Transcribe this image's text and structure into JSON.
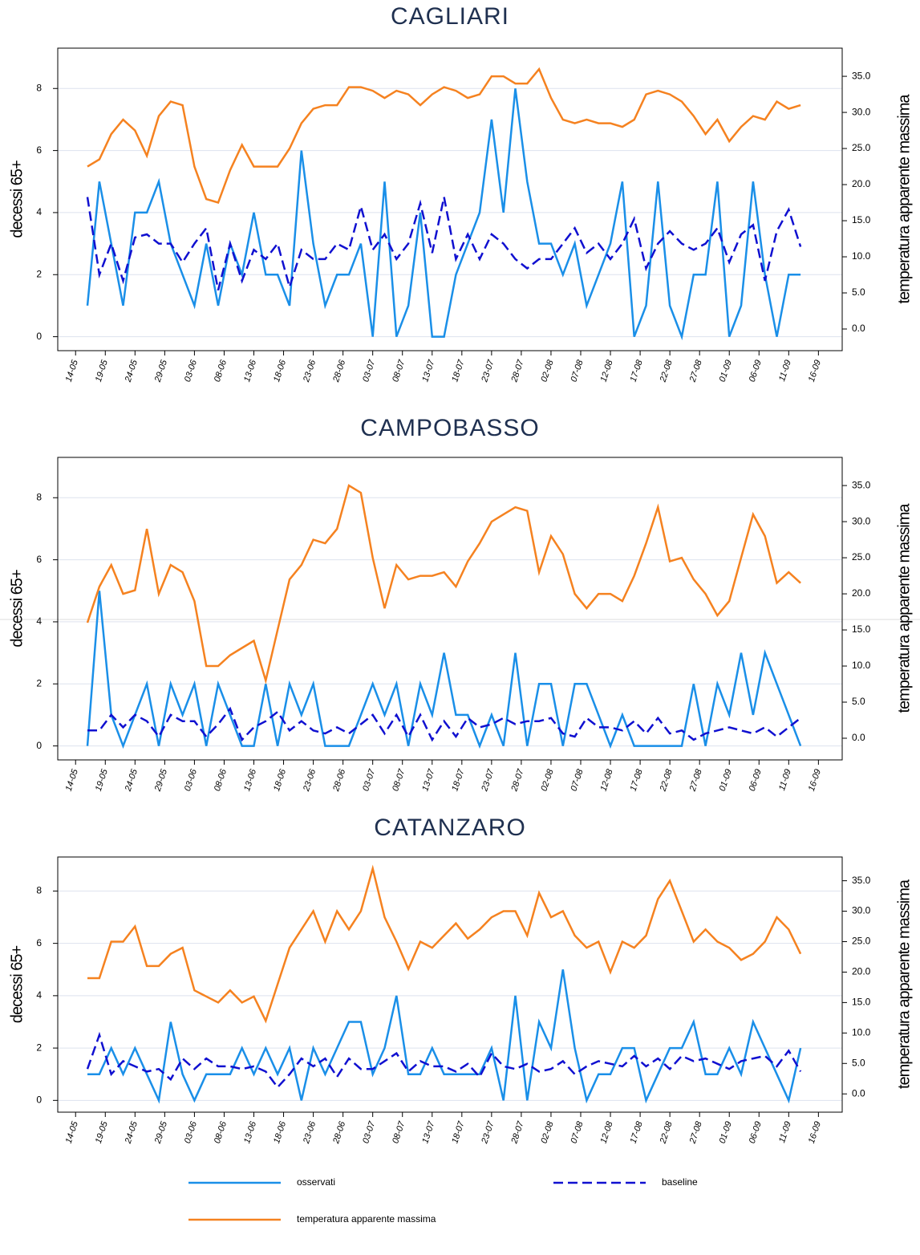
{
  "chart_data": [
    {
      "type": "line",
      "title": "CAGLIARI",
      "ylabel": "decessi 65+",
      "y2label": "temperatura apparente massima",
      "x": [
        "16-05",
        "18-05",
        "20-05",
        "22-05",
        "24-05",
        "26-05",
        "28-05",
        "30-05",
        "01-06",
        "03-06",
        "05-06",
        "07-06",
        "09-06",
        "11-06",
        "13-06",
        "15-06",
        "17-06",
        "19-06",
        "21-06",
        "23-06",
        "25-06",
        "27-06",
        "29-06",
        "01-07",
        "03-07",
        "05-07",
        "07-07",
        "09-07",
        "11-07",
        "13-07",
        "15-07",
        "17-07",
        "19-07",
        "21-07",
        "23-07",
        "25-07",
        "27-07",
        "29-07",
        "31-07",
        "02-08",
        "04-08",
        "06-08",
        "08-08",
        "10-08",
        "12-08",
        "14-08",
        "16-08",
        "18-08",
        "20-08",
        "22-08",
        "24-08",
        "26-08",
        "28-08",
        "30-08",
        "01-09",
        "03-09",
        "05-09",
        "07-09",
        "09-09",
        "11-09",
        "13-09"
      ],
      "xlim": [
        "11-05",
        "20-09"
      ],
      "xticks": [
        "14-05",
        "19-05",
        "24-05",
        "29-05",
        "03-06",
        "08-06",
        "13-06",
        "18-06",
        "23-06",
        "28-06",
        "03-07",
        "08-07",
        "13-07",
        "18-07",
        "23-07",
        "28-07",
        "02-08",
        "07-08",
        "12-08",
        "17-08",
        "22-08",
        "27-08",
        "01-09",
        "06-09",
        "11-09",
        "16-09"
      ],
      "ylim": [
        -0.45,
        9.3
      ],
      "yticks": [
        0,
        2,
        4,
        6,
        8
      ],
      "y2lim": [
        -3,
        38.9
      ],
      "y2ticks": [
        {
          "value": 0,
          "label": "0.0"
        },
        {
          "value": 5,
          "label": "5.0"
        },
        {
          "value": 10,
          "label": "10.0"
        },
        {
          "value": 15,
          "label": "15.0"
        },
        {
          "value": 20,
          "label": "20.0"
        },
        {
          "value": 25,
          "label": "25.0"
        },
        {
          "value": 30,
          "label": "30.0"
        },
        {
          "value": 35,
          "label": "35.0"
        }
      ],
      "grid": true,
      "series": [
        {
          "color": "#1a8fe8",
          "dash": "solid",
          "values": [
            1,
            5,
            3,
            1,
            4,
            4,
            5,
            3,
            2,
            1,
            3,
            1,
            3,
            2,
            4,
            2,
            2,
            1,
            6,
            3,
            1,
            2,
            2,
            3,
            0,
            5,
            0,
            1,
            4,
            0,
            0,
            2,
            3,
            4,
            7,
            4,
            8,
            5,
            3,
            3,
            2,
            3,
            1,
            2,
            3,
            5,
            0,
            1,
            5,
            1,
            0,
            2,
            2,
            5,
            0,
            1,
            5,
            2,
            0,
            2,
            2
          ]
        },
        {
          "color": "#1010d0",
          "dash": "dashed",
          "values": [
            4.5,
            2,
            3,
            1.8,
            3.2,
            3.3,
            3,
            3,
            2.4,
            3,
            3.5,
            1.5,
            3,
            1.8,
            2.8,
            2.5,
            3,
            1.6,
            2.8,
            2.5,
            2.5,
            3,
            2.8,
            4.2,
            2.8,
            3.3,
            2.5,
            3,
            4.3,
            2.7,
            4.5,
            2.5,
            3.3,
            2.5,
            3.3,
            3,
            2.5,
            2.2,
            2.5,
            2.5,
            3,
            3.5,
            2.7,
            3,
            2.5,
            3,
            3.8,
            2.2,
            3,
            3.4,
            3,
            2.8,
            3,
            3.5,
            2.4,
            3.3,
            3.6,
            1.8,
            3.4,
            4.1,
            2.9
          ]
        },
        {
          "color": "#f58220",
          "dash": "solid",
          "axis": "y2",
          "values": [
            22.5,
            23.5,
            27,
            29,
            27.5,
            24,
            29.5,
            31.5,
            31,
            22.5,
            18,
            17.5,
            22,
            25.5,
            22.5,
            22.5,
            22.5,
            25,
            28.5,
            30.5,
            31,
            31,
            33.5,
            33.5,
            33,
            32,
            33,
            32.5,
            31,
            32.5,
            33.5,
            33,
            32,
            32.5,
            35,
            35,
            34,
            34,
            36,
            32,
            29,
            28.5,
            29,
            28.5,
            28.5,
            28,
            29,
            32.5,
            33,
            32.5,
            31.5,
            29.5,
            27,
            29,
            26,
            28,
            29.5,
            29,
            31.5,
            30.5,
            31
          ]
        }
      ]
    },
    {
      "type": "line",
      "title": "CAMPOBASSO",
      "ylabel": "decessi 65+",
      "y2label": "temperatura apparente massima",
      "x": [
        "16-05",
        "18-05",
        "20-05",
        "22-05",
        "24-05",
        "26-05",
        "28-05",
        "30-05",
        "01-06",
        "03-06",
        "05-06",
        "07-06",
        "09-06",
        "11-06",
        "13-06",
        "15-06",
        "17-06",
        "19-06",
        "21-06",
        "23-06",
        "25-06",
        "27-06",
        "29-06",
        "01-07",
        "03-07",
        "05-07",
        "07-07",
        "09-07",
        "11-07",
        "13-07",
        "15-07",
        "17-07",
        "19-07",
        "21-07",
        "23-07",
        "25-07",
        "27-07",
        "29-07",
        "31-07",
        "02-08",
        "04-08",
        "06-08",
        "08-08",
        "10-08",
        "12-08",
        "14-08",
        "16-08",
        "18-08",
        "20-08",
        "22-08",
        "24-08",
        "26-08",
        "28-08",
        "30-08",
        "01-09",
        "03-09",
        "05-09",
        "07-09",
        "09-09",
        "11-09",
        "13-09"
      ],
      "xlim": [
        "11-05",
        "20-09"
      ],
      "xticks": [
        "14-05",
        "19-05",
        "24-05",
        "29-05",
        "03-06",
        "08-06",
        "13-06",
        "18-06",
        "23-06",
        "28-06",
        "03-07",
        "08-07",
        "13-07",
        "18-07",
        "23-07",
        "28-07",
        "02-08",
        "07-08",
        "12-08",
        "17-08",
        "22-08",
        "27-08",
        "01-09",
        "06-09",
        "11-09",
        "16-09"
      ],
      "ylim": [
        -0.45,
        9.3
      ],
      "yticks": [
        0,
        2,
        4,
        6,
        8
      ],
      "y2lim": [
        -3,
        38.9
      ],
      "y2ticks": [
        {
          "value": 0,
          "label": "0.0"
        },
        {
          "value": 5,
          "label": "5.0"
        },
        {
          "value": 10,
          "label": "10.0"
        },
        {
          "value": 15,
          "label": "15.0"
        },
        {
          "value": 20,
          "label": "20.0"
        },
        {
          "value": 25,
          "label": "25.0"
        },
        {
          "value": 30,
          "label": "30.0"
        },
        {
          "value": 35,
          "label": "35.0"
        }
      ],
      "grid": true,
      "series": [
        {
          "color": "#1a8fe8",
          "dash": "solid",
          "values": [
            0,
            5,
            1,
            0,
            1,
            2,
            0,
            2,
            1,
            2,
            0,
            2,
            1,
            0,
            0,
            2,
            0,
            2,
            1,
            2,
            0,
            0,
            0,
            1,
            2,
            1,
            2,
            0,
            2,
            1,
            3,
            1,
            1,
            0,
            1,
            0,
            3,
            0,
            2,
            2,
            0,
            2,
            2,
            1,
            0,
            1,
            0,
            0,
            0,
            0,
            0,
            2,
            0,
            2,
            1,
            3,
            1,
            3,
            2,
            1,
            0
          ]
        },
        {
          "color": "#1010d0",
          "dash": "dashed",
          "values": [
            0.5,
            0.5,
            1,
            0.6,
            1,
            0.8,
            0.3,
            1,
            0.8,
            0.8,
            0.3,
            0.7,
            1.2,
            0.2,
            0.6,
            0.8,
            1.1,
            0.5,
            0.8,
            0.5,
            0.4,
            0.6,
            0.4,
            0.7,
            1,
            0.4,
            1,
            0.3,
            1,
            0.2,
            0.8,
            0.3,
            0.9,
            0.6,
            0.7,
            0.9,
            0.7,
            0.8,
            0.8,
            0.9,
            0.4,
            0.3,
            0.9,
            0.6,
            0.6,
            0.5,
            0.8,
            0.4,
            0.9,
            0.4,
            0.5,
            0.2,
            0.4,
            0.5,
            0.6,
            0.5,
            0.4,
            0.6,
            0.3,
            0.6,
            0.9
          ]
        },
        {
          "color": "#f58220",
          "dash": "solid",
          "axis": "y2",
          "values": [
            16,
            21,
            24,
            20,
            20.5,
            29,
            20,
            24,
            23,
            19,
            10,
            10,
            11.5,
            12.5,
            13.5,
            8,
            15,
            22,
            24,
            27.5,
            27,
            29,
            35,
            34,
            25,
            18,
            24,
            22,
            22.5,
            22.5,
            23,
            21,
            24.5,
            27,
            30,
            31,
            32,
            31.5,
            23,
            28,
            25.5,
            20,
            18,
            20,
            20,
            19,
            22.5,
            27,
            32,
            24.5,
            25,
            22,
            20,
            17,
            19,
            25,
            31,
            28,
            21.5,
            23,
            21.5
          ]
        }
      ]
    },
    {
      "type": "line",
      "title": "CATANZARO",
      "ylabel": "decessi 65+",
      "y2label": "temperatura apparente massima",
      "x": [
        "16-05",
        "18-05",
        "20-05",
        "22-05",
        "24-05",
        "26-05",
        "28-05",
        "30-05",
        "01-06",
        "03-06",
        "05-06",
        "07-06",
        "09-06",
        "11-06",
        "13-06",
        "15-06",
        "17-06",
        "19-06",
        "21-06",
        "23-06",
        "25-06",
        "27-06",
        "29-06",
        "01-07",
        "03-07",
        "05-07",
        "07-07",
        "09-07",
        "11-07",
        "13-07",
        "15-07",
        "17-07",
        "19-07",
        "21-07",
        "23-07",
        "25-07",
        "27-07",
        "29-07",
        "31-07",
        "02-08",
        "04-08",
        "06-08",
        "08-08",
        "10-08",
        "12-08",
        "14-08",
        "16-08",
        "18-08",
        "20-08",
        "22-08",
        "24-08",
        "26-08",
        "28-08",
        "30-08",
        "01-09",
        "03-09",
        "05-09",
        "07-09",
        "09-09",
        "11-09",
        "13-09"
      ],
      "xlim": [
        "11-05",
        "20-09"
      ],
      "xticks": [
        "14-05",
        "19-05",
        "24-05",
        "29-05",
        "03-06",
        "08-06",
        "13-06",
        "18-06",
        "23-06",
        "28-06",
        "03-07",
        "08-07",
        "13-07",
        "18-07",
        "23-07",
        "28-07",
        "02-08",
        "07-08",
        "12-08",
        "17-08",
        "22-08",
        "27-08",
        "01-09",
        "06-09",
        "11-09",
        "16-09"
      ],
      "ylim": [
        -0.45,
        9.3
      ],
      "yticks": [
        0,
        2,
        4,
        6,
        8
      ],
      "y2lim": [
        -3,
        38.9
      ],
      "y2ticks": [
        {
          "value": 0,
          "label": "0.0"
        },
        {
          "value": 5,
          "label": "5.0"
        },
        {
          "value": 10,
          "label": "10.0"
        },
        {
          "value": 15,
          "label": "15.0"
        },
        {
          "value": 20,
          "label": "20.0"
        },
        {
          "value": 25,
          "label": "25.0"
        },
        {
          "value": 30,
          "label": "30.0"
        },
        {
          "value": 35,
          "label": "35.0"
        }
      ],
      "grid": true,
      "series": [
        {
          "color": "#1a8fe8",
          "dash": "solid",
          "values": [
            1,
            1,
            2,
            1,
            2,
            1,
            0,
            3,
            1,
            0,
            1,
            1,
            1,
            2,
            1,
            2,
            1,
            2,
            0,
            2,
            1,
            2,
            3,
            3,
            1,
            2,
            4,
            1,
            1,
            2,
            1,
            1,
            1,
            1,
            2,
            0,
            4,
            0,
            3,
            2,
            5,
            2,
            0,
            1,
            1,
            2,
            2,
            0,
            1,
            2,
            2,
            3,
            1,
            1,
            2,
            1,
            3,
            2,
            1,
            0,
            2
          ]
        },
        {
          "color": "#1010d0",
          "dash": "dashed",
          "values": [
            1.2,
            2.5,
            1,
            1.5,
            1.3,
            1.1,
            1.2,
            0.8,
            1.6,
            1.2,
            1.6,
            1.3,
            1.3,
            1.2,
            1.3,
            1.1,
            0.5,
            1,
            1.6,
            1.3,
            1.6,
            0.9,
            1.6,
            1.2,
            1.2,
            1.5,
            1.8,
            1.1,
            1.5,
            1.3,
            1.3,
            1.1,
            1.4,
            0.9,
            1.8,
            1.3,
            1.2,
            1.4,
            1.1,
            1.2,
            1.5,
            1,
            1.3,
            1.5,
            1.4,
            1.3,
            1.7,
            1.3,
            1.6,
            1.2,
            1.7,
            1.5,
            1.6,
            1.4,
            1.2,
            1.5,
            1.6,
            1.7,
            1.3,
            1.9,
            1.1
          ]
        },
        {
          "color": "#f58220",
          "dash": "solid",
          "axis": "y2",
          "values": [
            19,
            19,
            25,
            25,
            27.5,
            21,
            21,
            23,
            24,
            17,
            16,
            15,
            17,
            15,
            16,
            12,
            18,
            24,
            27,
            30,
            25,
            30,
            27,
            30,
            37,
            29,
            25,
            20.5,
            25,
            24,
            26,
            28,
            25.5,
            27,
            29,
            30,
            30,
            26,
            33,
            29,
            30,
            26,
            24,
            25,
            20,
            25,
            24,
            26,
            32,
            35,
            30,
            25,
            27,
            25,
            24,
            22,
            23,
            25,
            29,
            27,
            23
          ]
        }
      ]
    }
  ],
  "legend": [
    "osservati",
    "baseline",
    "temperatura apparente massima"
  ]
}
